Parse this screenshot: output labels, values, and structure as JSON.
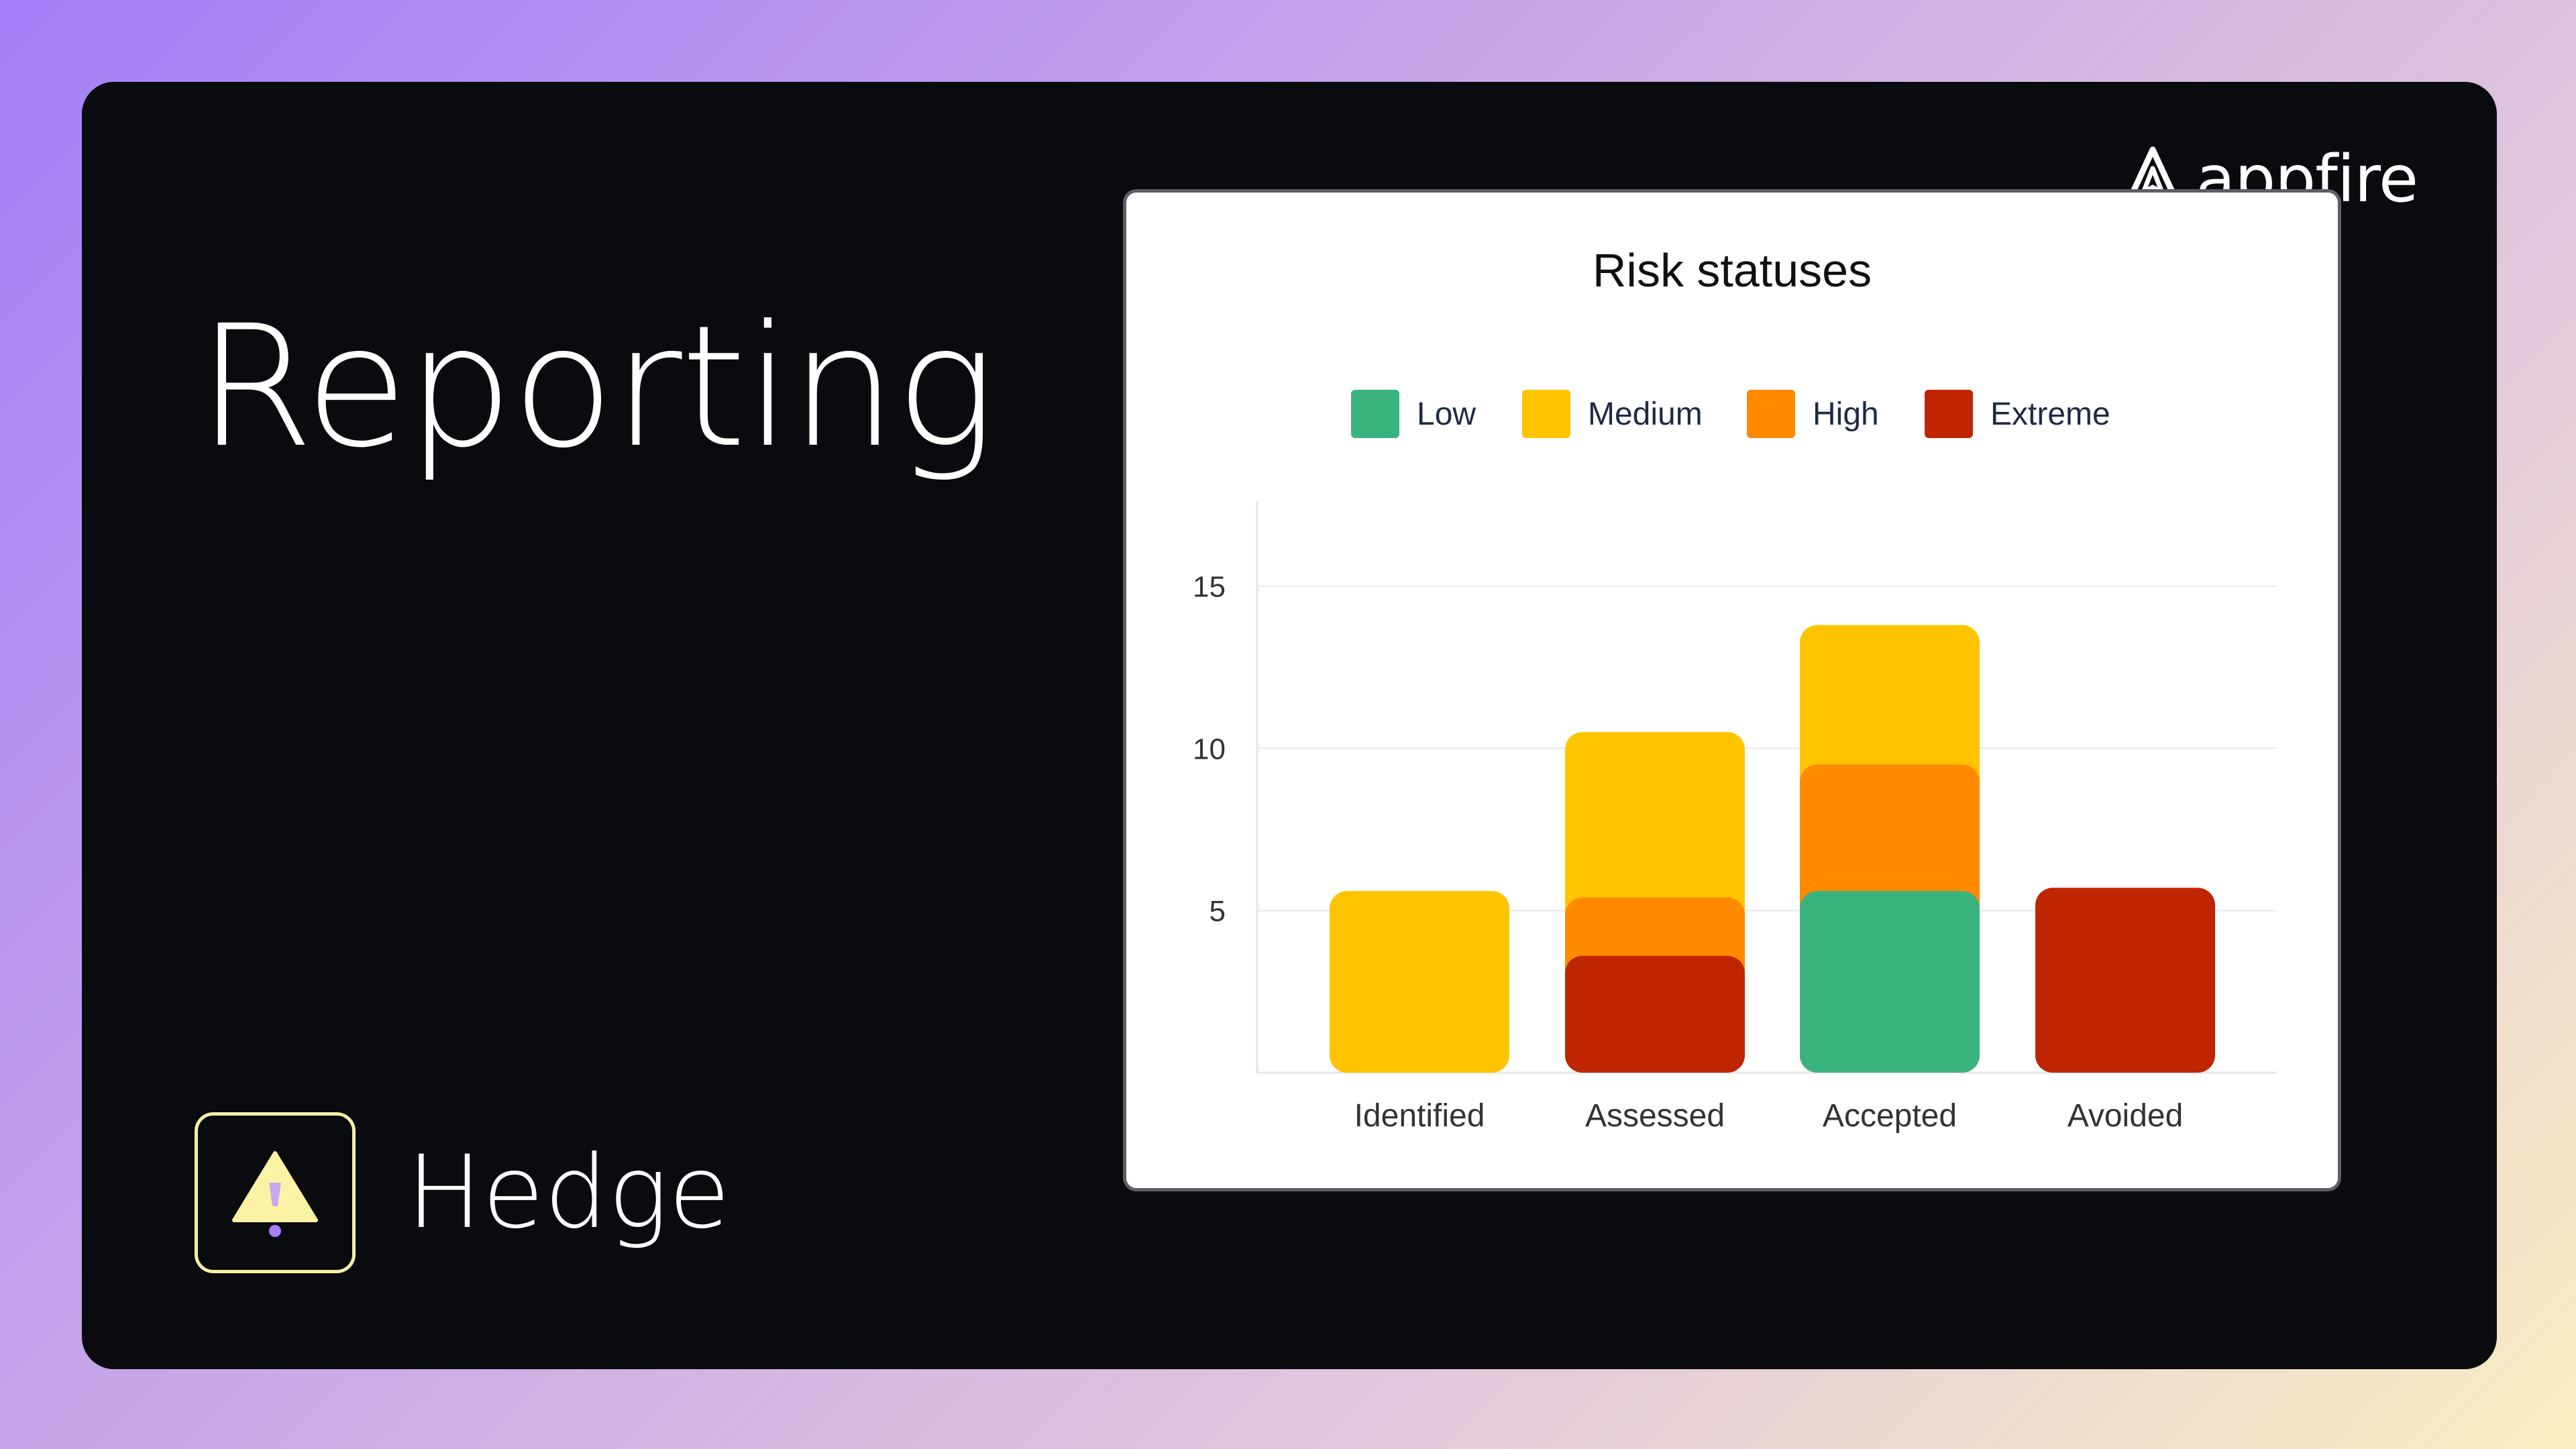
{
  "page": {
    "title": "Reporting",
    "product_name": "Hedge",
    "brand_name": "appfire"
  },
  "chart_data": {
    "type": "bar",
    "stacked": true,
    "title": "Risk statuses",
    "categories": [
      "Identified",
      "Assessed",
      "Accepted",
      "Avoided"
    ],
    "series": [
      {
        "name": "Low",
        "color": "#3ab37f",
        "values": [
          0,
          0,
          5.6,
          0
        ]
      },
      {
        "name": "Medium",
        "color": "#ffc400",
        "values": [
          5.6,
          5.1,
          4.3,
          0
        ]
      },
      {
        "name": "High",
        "color": "#ff8a00",
        "values": [
          0,
          1.8,
          3.9,
          0
        ]
      },
      {
        "name": "Extreme",
        "color": "#bf2600",
        "values": [
          0,
          3.6,
          0,
          5.7
        ]
      }
    ],
    "yticks": [
      5,
      10,
      15
    ],
    "ylim": [
      0,
      17
    ],
    "grid": true,
    "legend_position": "top-center",
    "xlabel": "",
    "ylabel": ""
  },
  "icons": {
    "brand_logo": "appfire-logo-icon",
    "product_icon": "hedge-warning-triangle-icon"
  }
}
